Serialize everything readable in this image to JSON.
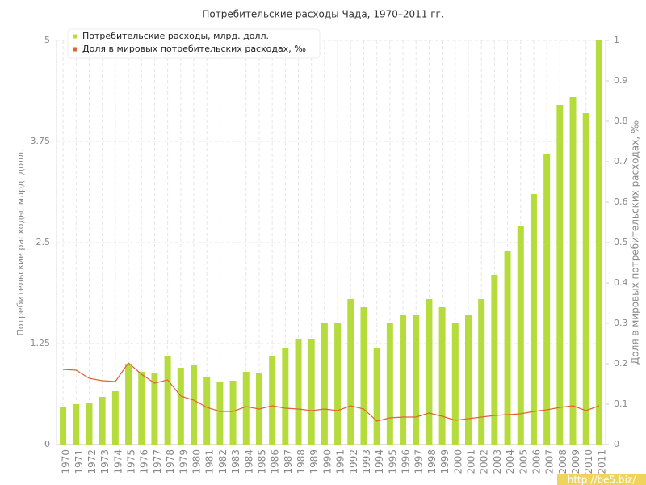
{
  "chart_data": {
    "type": "bar_line",
    "title": "Потребительские расходы Чада, 1970–2011 гг.",
    "y_label": "Потребительские расходы, млрд. долл.",
    "y2_label": "Доля в мировых потребительских расходах, ‰",
    "watermark": "http://be5.biz/",
    "categories": [
      "1970",
      "1971",
      "1972",
      "1973",
      "1974",
      "1975",
      "1976",
      "1977",
      "1978",
      "1979",
      "1980",
      "1981",
      "1982",
      "1983",
      "1984",
      "1985",
      "1986",
      "1987",
      "1988",
      "1989",
      "1990",
      "1991",
      "1992",
      "1993",
      "1994",
      "1995",
      "1996",
      "1997",
      "1998",
      "1999",
      "2000",
      "2001",
      "2002",
      "2003",
      "2004",
      "2005",
      "2006",
      "2007",
      "2008",
      "2009",
      "2010",
      "2011"
    ],
    "series": [
      {
        "name": "Потребительские расходы, млрд. долл.",
        "type": "bar",
        "color": "#b5dc3c",
        "values": [
          0.46,
          0.5,
          0.52,
          0.59,
          0.66,
          1.0,
          0.9,
          0.88,
          1.1,
          0.95,
          0.98,
          0.84,
          0.77,
          0.79,
          0.9,
          0.88,
          1.1,
          1.2,
          1.3,
          1.3,
          1.5,
          1.5,
          1.8,
          1.7,
          1.2,
          1.5,
          1.6,
          1.6,
          1.8,
          1.7,
          1.5,
          1.6,
          1.8,
          2.1,
          2.4,
          2.7,
          3.1,
          3.6,
          4.2,
          4.3,
          4.1,
          5.0
        ]
      },
      {
        "name": "Доля в мировых потребительских расходах, ‰",
        "type": "line",
        "axis": "y2",
        "color": "#e0623a",
        "values": [
          0.186,
          0.184,
          0.164,
          0.158,
          0.156,
          0.202,
          0.174,
          0.152,
          0.16,
          0.12,
          0.11,
          0.092,
          0.082,
          0.082,
          0.094,
          0.088,
          0.096,
          0.09,
          0.088,
          0.084,
          0.088,
          0.084,
          0.096,
          0.088,
          0.058,
          0.066,
          0.068,
          0.068,
          0.078,
          0.07,
          0.06,
          0.064,
          0.068,
          0.072,
          0.074,
          0.076,
          0.082,
          0.086,
          0.092,
          0.096,
          0.084,
          0.096
        ]
      }
    ],
    "ylim": [
      0,
      5
    ],
    "yticks": [
      0,
      1.25,
      2.5,
      3.75,
      5
    ],
    "y2lim": [
      0,
      1
    ],
    "y2ticks": [
      0,
      0.1,
      0.2,
      0.3,
      0.4,
      0.5,
      0.6,
      0.7,
      0.8,
      0.9,
      1
    ],
    "grid": true,
    "legend": "top-left"
  }
}
